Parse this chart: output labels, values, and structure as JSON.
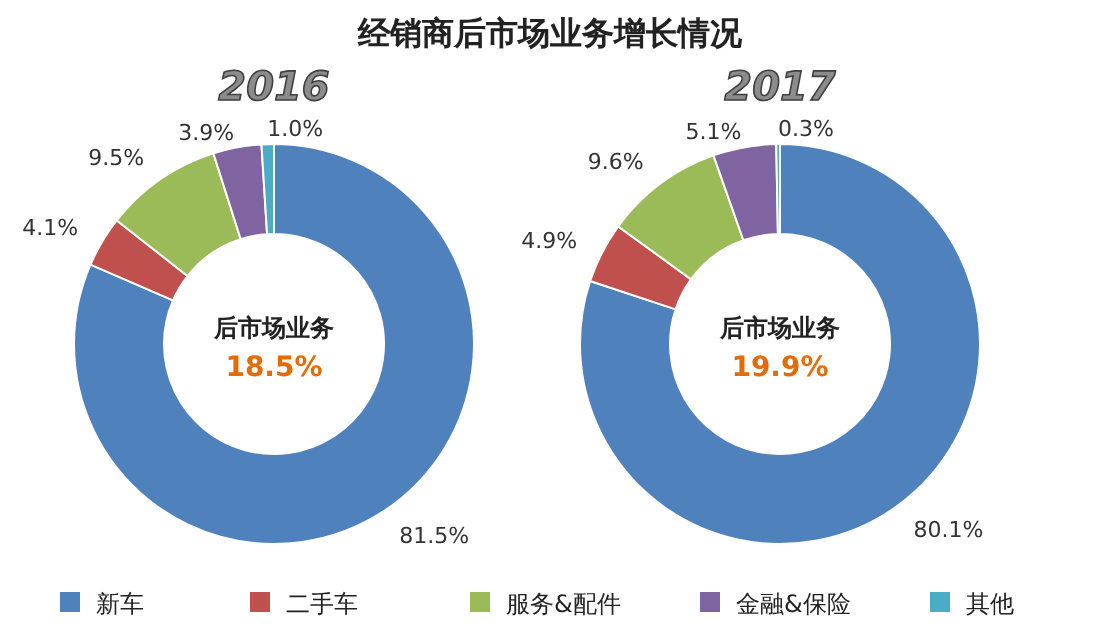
{
  "chart_data": [
    {
      "type": "donut",
      "title": "经销商后市场业务增长情况",
      "subtitle": "2016",
      "categories": [
        "新车",
        "二手车",
        "服务&配件",
        "金融&保险",
        "其他"
      ],
      "values": [
        81.5,
        4.1,
        9.5,
        3.9,
        1.0
      ],
      "value_labels": [
        "81.5%",
        "4.1%",
        "9.5%",
        "3.9%",
        "1.0%"
      ],
      "colors": [
        "#4f81bd",
        "#c0504d",
        "#9bbb59",
        "#8064a2",
        "#4bacc6"
      ],
      "annotations": [
        "后市场业务",
        "18.5%"
      ],
      "legend": "bottom"
    },
    {
      "type": "donut",
      "subtitle": "2017",
      "categories": [
        null,
        null,
        null,
        null,
        null
      ],
      "values": [
        80.1,
        4.9,
        9.6,
        5.1,
        0.3
      ],
      "value_labels": [
        "80.1%",
        "4.9%",
        "9.6%",
        "5.1%",
        "0.3%"
      ],
      "colors": [
        "#4f81bd",
        "#c0504d",
        "#9bbb59",
        "#8064a2",
        "#4bacc6"
      ],
      "annotations": [
        "后市场业务",
        "19.9%"
      ]
    }
  ]
}
